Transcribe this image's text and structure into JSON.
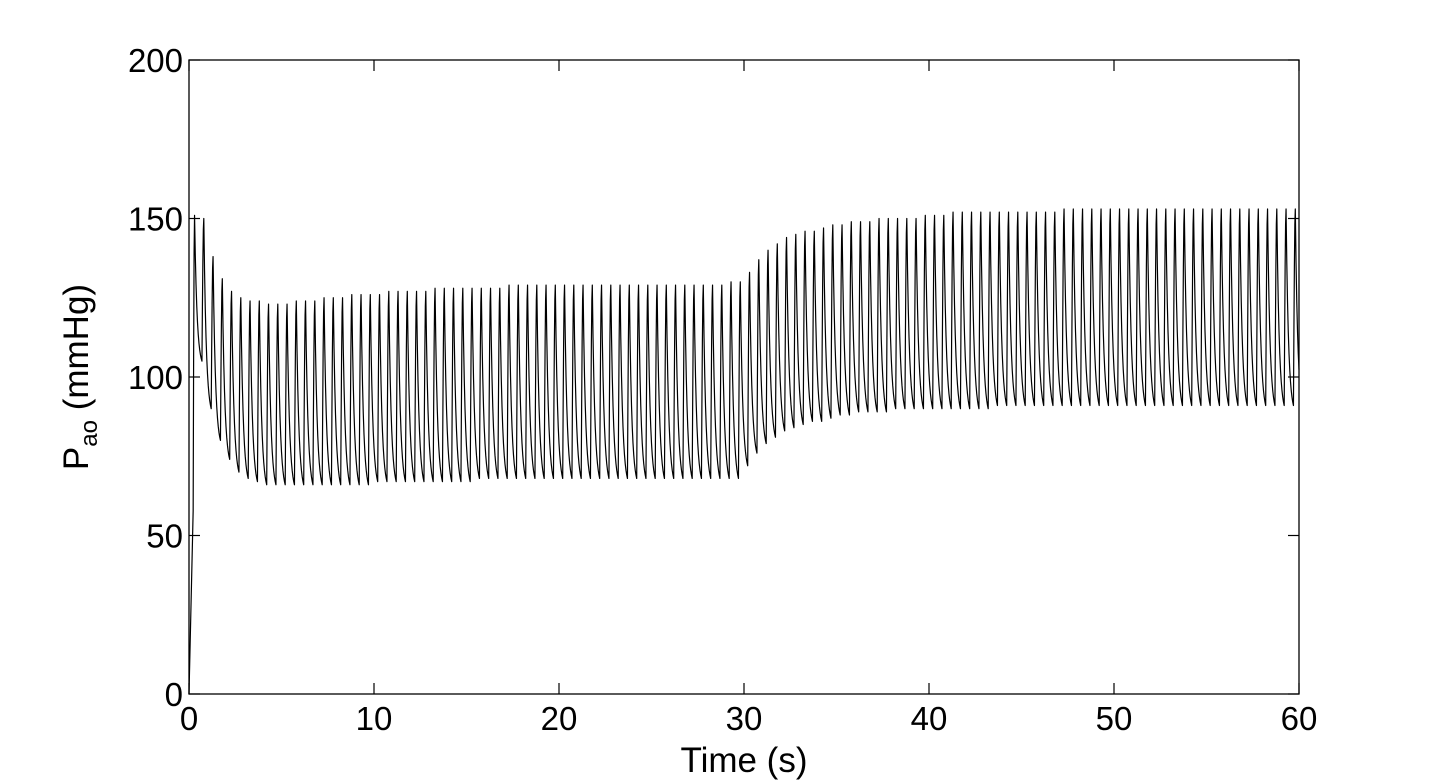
{
  "chart_data": {
    "type": "line",
    "title": "",
    "xlabel": "Time (s)",
    "ylabel": {
      "main": "P",
      "subscript": "ao",
      "suffix": " (mmHg)"
    },
    "xlim": [
      0,
      60
    ],
    "ylim": [
      0,
      200
    ],
    "xticks": [
      0,
      10,
      20,
      30,
      40,
      50,
      60
    ],
    "yticks": [
      0,
      50,
      100,
      150,
      200
    ],
    "xtick_labels": [
      "0",
      "10",
      "20",
      "30",
      "40",
      "50",
      "60"
    ],
    "ytick_labels": [
      "0",
      "50",
      "100",
      "150",
      "200"
    ],
    "grid": false,
    "line_color": "#000000",
    "series": [
      {
        "name": "",
        "heart_period_s": 0.5,
        "beats": {
          "t_start": [
            0.2,
            0.7,
            1.2,
            1.7,
            2.2,
            2.7,
            3.2,
            3.7,
            4.2,
            4.7,
            5.2,
            5.7,
            6.2,
            6.7,
            7.2,
            7.7,
            8.2,
            8.7,
            9.2,
            9.7,
            10.2,
            10.7,
            11.2,
            11.7,
            12.2,
            12.7,
            13.2,
            13.7,
            14.2,
            14.7,
            15.2,
            15.7,
            16.2,
            16.7,
            17.2,
            17.7,
            18.2,
            18.7,
            19.2,
            19.7,
            20.2,
            20.7,
            21.2,
            21.7,
            22.2,
            22.7,
            23.2,
            23.7,
            24.2,
            24.7,
            25.2,
            25.7,
            26.2,
            26.7,
            27.2,
            27.7,
            28.2,
            28.7,
            29.2,
            29.7,
            30.2,
            30.7,
            31.2,
            31.7,
            32.2,
            32.7,
            33.2,
            33.7,
            34.2,
            34.7,
            35.2,
            35.7,
            36.2,
            36.7,
            37.2,
            37.7,
            38.2,
            38.7,
            39.2,
            39.7,
            40.2,
            40.7,
            41.2,
            41.7,
            42.2,
            42.7,
            43.2,
            43.7,
            44.2,
            44.7,
            45.2,
            45.7,
            46.2,
            46.7,
            47.2,
            47.7,
            48.2,
            48.7,
            49.2,
            49.7,
            50.2,
            50.7,
            51.2,
            51.7,
            52.2,
            52.7,
            53.2,
            53.7,
            54.2,
            54.7,
            55.2,
            55.7,
            56.2,
            56.7,
            57.2,
            57.7,
            58.2,
            58.7,
            59.2,
            59.7
          ],
          "systolic_mmHg": [
            151,
            150,
            138,
            131,
            127,
            125,
            124,
            124,
            123,
            123,
            123,
            124,
            124,
            124,
            125,
            125,
            125,
            126,
            126,
            126,
            126,
            127,
            127,
            127,
            127,
            127,
            128,
            128,
            128,
            128,
            128,
            128,
            128,
            128,
            129,
            129,
            129,
            129,
            129,
            129,
            129,
            129,
            129,
            129,
            129,
            129,
            129,
            129,
            129,
            129,
            129,
            129,
            129,
            129,
            129,
            129,
            129,
            129,
            130,
            130,
            133,
            137,
            140,
            142,
            144,
            145,
            146,
            146,
            147,
            148,
            148,
            149,
            149,
            149,
            150,
            150,
            150,
            150,
            150,
            151,
            151,
            151,
            152,
            152,
            152,
            152,
            152,
            152,
            152,
            152,
            152,
            152,
            152,
            152,
            153,
            153,
            153,
            153,
            153,
            153,
            153,
            153,
            153,
            153,
            153,
            153,
            153,
            153,
            153,
            153,
            153,
            153,
            153,
            153,
            153,
            153,
            153,
            153,
            153,
            153
          ],
          "diastolic_mmHg": [
            105,
            90,
            80,
            74,
            70,
            68,
            67,
            66,
            66,
            66,
            66,
            66,
            66,
            66,
            66,
            66,
            66,
            66,
            66,
            67,
            67,
            67,
            67,
            67,
            67,
            67,
            67,
            67,
            67,
            67,
            68,
            68,
            68,
            68,
            68,
            68,
            68,
            68,
            68,
            68,
            68,
            68,
            68,
            68,
            68,
            68,
            68,
            68,
            68,
            68,
            68,
            68,
            68,
            68,
            68,
            68,
            68,
            68,
            68,
            72,
            76,
            79,
            81,
            83,
            84,
            85,
            86,
            86,
            87,
            88,
            88,
            89,
            89,
            89,
            89,
            90,
            90,
            90,
            90,
            90,
            90,
            90,
            90,
            90,
            90,
            90,
            91,
            91,
            91,
            91,
            91,
            91,
            91,
            91,
            91,
            91,
            91,
            91,
            91,
            91,
            91,
            91,
            91,
            91,
            91,
            91,
            91,
            91,
            91,
            91,
            91,
            91,
            91,
            91,
            91,
            91,
            91,
            91,
            91,
            91
          ]
        },
        "initial_t": 0,
        "initial_mmHg": 0,
        "end_t": 60,
        "end_mmHg": 100
      }
    ]
  }
}
